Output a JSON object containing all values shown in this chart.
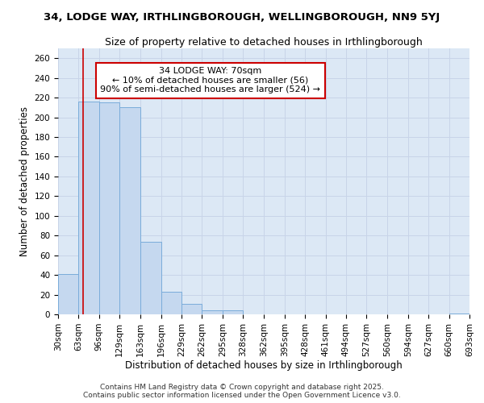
{
  "title": "34, LODGE WAY, IRTHLINGBOROUGH, WELLINGBOROUGH, NN9 5YJ",
  "subtitle": "Size of property relative to detached houses in Irthlingborough",
  "xlabel": "Distribution of detached houses by size in Irthlingborough",
  "ylabel": "Number of detached properties",
  "bin_edges": [
    30,
    63,
    96,
    129,
    163,
    196,
    229,
    262,
    295,
    328,
    362,
    395,
    428,
    461,
    494,
    527,
    560,
    594,
    627,
    660,
    693
  ],
  "bar_heights": [
    41,
    216,
    215,
    210,
    74,
    23,
    11,
    4,
    4,
    0,
    0,
    0,
    0,
    0,
    0,
    0,
    0,
    0,
    0,
    1
  ],
  "bar_color": "#c5d8ef",
  "bar_edge_color": "#7aacda",
  "property_size": 70,
  "annotation_text": "34 LODGE WAY: 70sqm\n← 10% of detached houses are smaller (56)\n90% of semi-detached houses are larger (524) →",
  "annotation_box_color": "#ffffff",
  "annotation_border_color": "#cc0000",
  "red_line_color": "#cc0000",
  "ylim": [
    0,
    270
  ],
  "yticks": [
    0,
    20,
    40,
    60,
    80,
    100,
    120,
    140,
    160,
    180,
    200,
    220,
    240,
    260
  ],
  "grid_color": "#c8d4e8",
  "background_color": "#dce8f5",
  "footnote": "Contains HM Land Registry data © Crown copyright and database right 2025.\nContains public sector information licensed under the Open Government Licence v3.0.",
  "title_fontsize": 9.5,
  "subtitle_fontsize": 9,
  "axis_label_fontsize": 8.5,
  "tick_fontsize": 7.5,
  "annotation_fontsize": 8
}
